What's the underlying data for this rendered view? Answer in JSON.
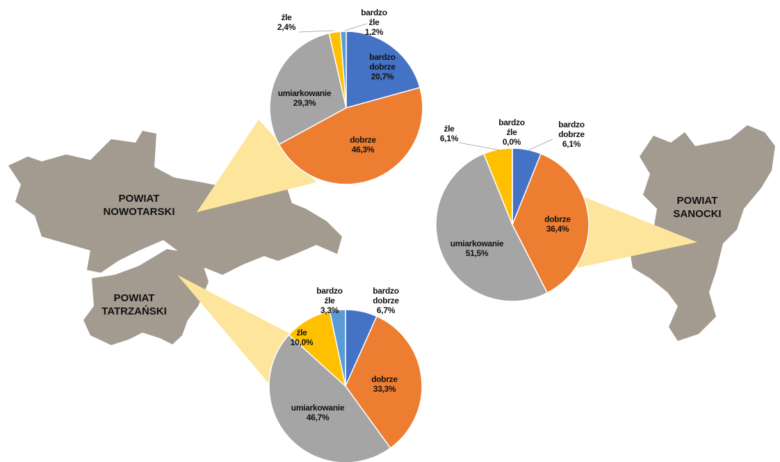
{
  "chart_data": [
    {
      "type": "pie",
      "title": "POWIAT NOWOTARSKI",
      "categories": [
        "bardzo dobrze",
        "dobrze",
        "umiarkowanie",
        "źle",
        "bardzo źle"
      ],
      "values": [
        20.7,
        46.3,
        29.3,
        2.4,
        1.2
      ],
      "value_labels": [
        "20,7%",
        "46,3%",
        "29,3%",
        "2,4%",
        "1,2%"
      ],
      "colors": [
        "#4472c4",
        "#ed7d31",
        "#a5a5a5",
        "#ffc000",
        "#5b9bd5"
      ]
    },
    {
      "type": "pie",
      "title": "POWIAT SANOCKI",
      "categories": [
        "bardzo dobrze",
        "dobrze",
        "umiarkowanie",
        "źle",
        "bardzo źle"
      ],
      "values": [
        6.1,
        36.4,
        51.5,
        6.1,
        0.0
      ],
      "value_labels": [
        "6,1%",
        "36,4%",
        "51,5%",
        "6,1%",
        "0,0%"
      ],
      "colors": [
        "#4472c4",
        "#ed7d31",
        "#a5a5a5",
        "#ffc000",
        "#5b9bd5"
      ]
    },
    {
      "type": "pie",
      "title": "POWIAT TATRZAŃSKI",
      "categories": [
        "bardzo dobrze",
        "dobrze",
        "umiarkowanie",
        "źle",
        "bardzo źle"
      ],
      "values": [
        6.7,
        33.3,
        46.7,
        10.0,
        3.3
      ],
      "value_labels": [
        "6,7%",
        "33,3%",
        "46,7%",
        "10,0%",
        "3,3%"
      ],
      "colors": [
        "#4472c4",
        "#ed7d31",
        "#a5a5a5",
        "#ffc000",
        "#5b9bd5"
      ]
    }
  ]
}
